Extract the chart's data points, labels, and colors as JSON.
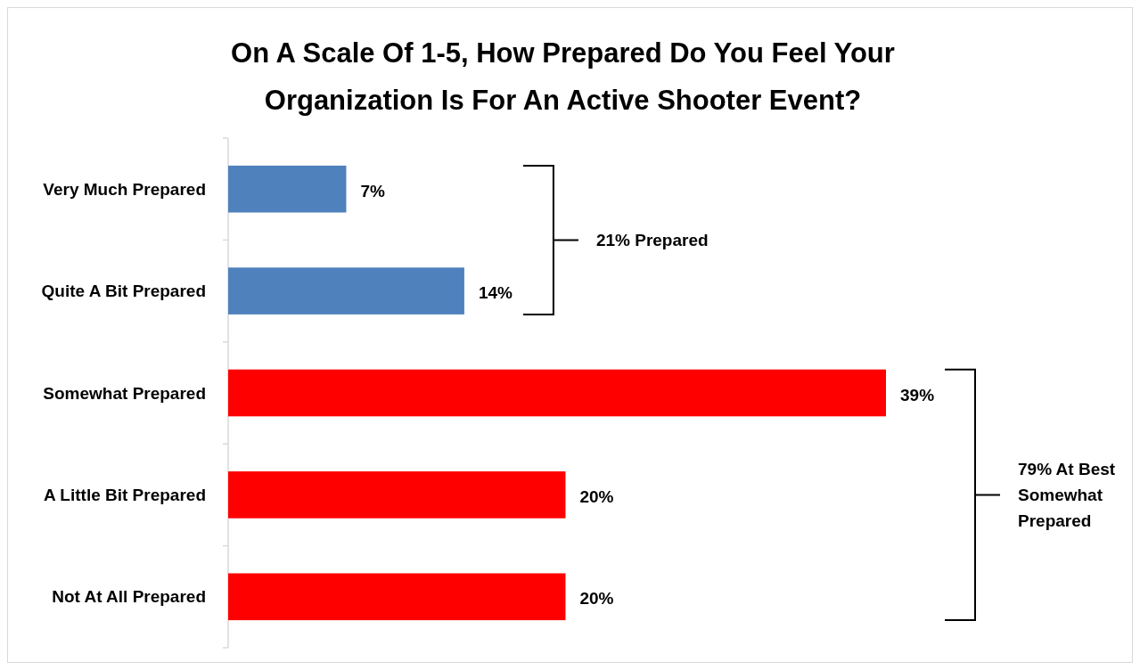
{
  "chart_data": {
    "type": "bar",
    "orientation": "horizontal",
    "title": "On A Scale Of 1-5, How Prepared Do You Feel Your Organization Is For An Active Shooter Event?",
    "categories": [
      "Very Much Prepared",
      "Quite A Bit Prepared",
      "Somewhat Prepared",
      "A Little Bit Prepared",
      "Not At All Prepared"
    ],
    "values": [
      7,
      14,
      39,
      20,
      20
    ],
    "colors": [
      "#4f81bd",
      "#4f81bd",
      "#ff0000",
      "#ff0000",
      "#ff0000"
    ],
    "value_labels": [
      "7%",
      "14%",
      "39%",
      "20%",
      "20%"
    ],
    "annotations": [
      "21% Prepared",
      "79% At Best Somewhat Prepared"
    ]
  }
}
